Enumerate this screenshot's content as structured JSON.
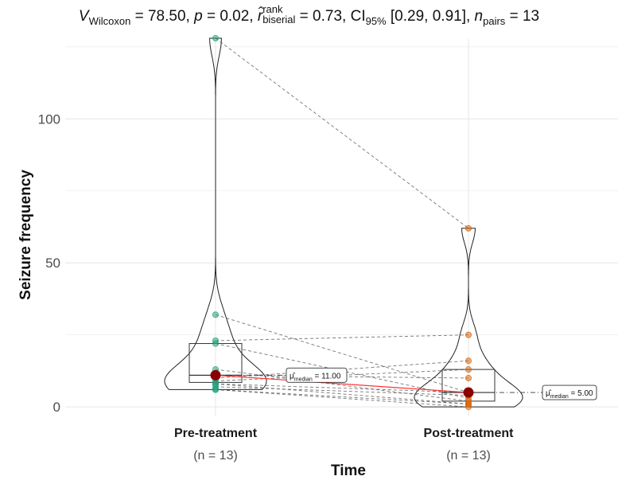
{
  "title": {
    "v_symbol": "V",
    "v_sub": "Wilcoxon",
    "v_value": "= 78.50,",
    "p_symbol": "p",
    "p_value": "= 0.02,",
    "r_symbol": "r̂",
    "r_sup": "rank",
    "r_sub": "biserial",
    "r_value": "= 0.73,",
    "ci_symbol": "CI",
    "ci_sub": "95%",
    "ci_value": "[0.29, 0.91],",
    "n_symbol": "n",
    "n_sub": "pairs",
    "n_value": "= 13"
  },
  "chart_data": {
    "type": "violin-box-paired",
    "xlabel": "Time",
    "ylabel": "Seizure frequency",
    "ylim": [
      -3,
      128
    ],
    "yticks": [
      0,
      50,
      100
    ],
    "grid": true,
    "categories": [
      "Pre-treatment",
      "Post-treatment"
    ],
    "n_labels": [
      "(n = 13)",
      "(n = 13)"
    ],
    "colors": {
      "pre": "#1b9e77",
      "post": "#d95f02",
      "median_point": "#8b0000",
      "median_line": "#ff3333"
    },
    "series": [
      {
        "name": "Pre-treatment",
        "values": [
          128,
          32,
          23,
          22,
          13,
          11,
          10,
          9,
          8,
          8,
          7,
          6,
          6
        ],
        "median": 11,
        "q1": 8.5,
        "q3": 22,
        "median_label": "11.00"
      },
      {
        "name": "Post-treatment",
        "values": [
          62,
          25,
          16,
          13,
          10,
          5,
          5,
          4,
          3,
          2,
          1,
          1,
          0
        ],
        "median": 5,
        "q1": 2,
        "q3": 13,
        "median_label": "5.00"
      }
    ],
    "pairs": [
      [
        128,
        62
      ],
      [
        32,
        5
      ],
      [
        23,
        25
      ],
      [
        22,
        3
      ],
      [
        13,
        2
      ],
      [
        11,
        10
      ],
      [
        10,
        16
      ],
      [
        9,
        13
      ],
      [
        8,
        5
      ],
      [
        8,
        1
      ],
      [
        7,
        4
      ],
      [
        6,
        1
      ],
      [
        6,
        0
      ]
    ],
    "median_symbol": "μ̂",
    "median_subscript": "median"
  }
}
